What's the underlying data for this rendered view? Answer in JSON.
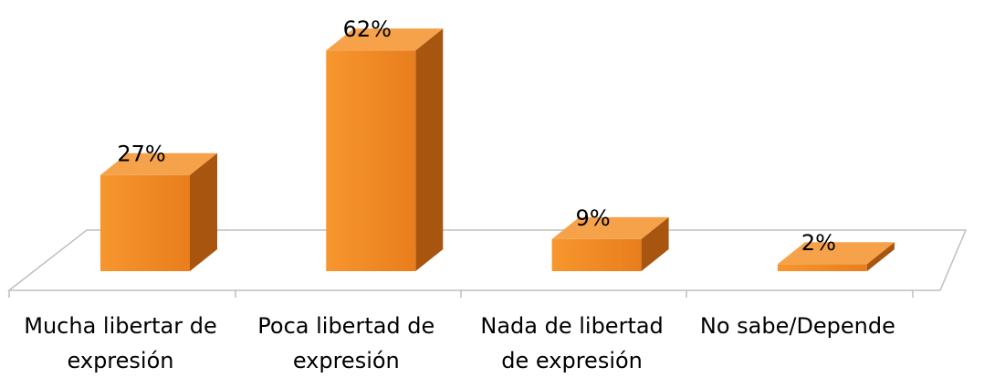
{
  "chart_data": {
    "type": "bar3d",
    "categories": [
      "Mucha libertar de expresión",
      "Poca libertad de expresión",
      "Nada de libertad de expresión",
      "No sabe/Depende"
    ],
    "values": [
      27,
      62,
      9,
      2
    ],
    "value_labels": [
      "27%",
      "62%",
      "9%",
      "2%"
    ],
    "color": "#f28a24"
  }
}
